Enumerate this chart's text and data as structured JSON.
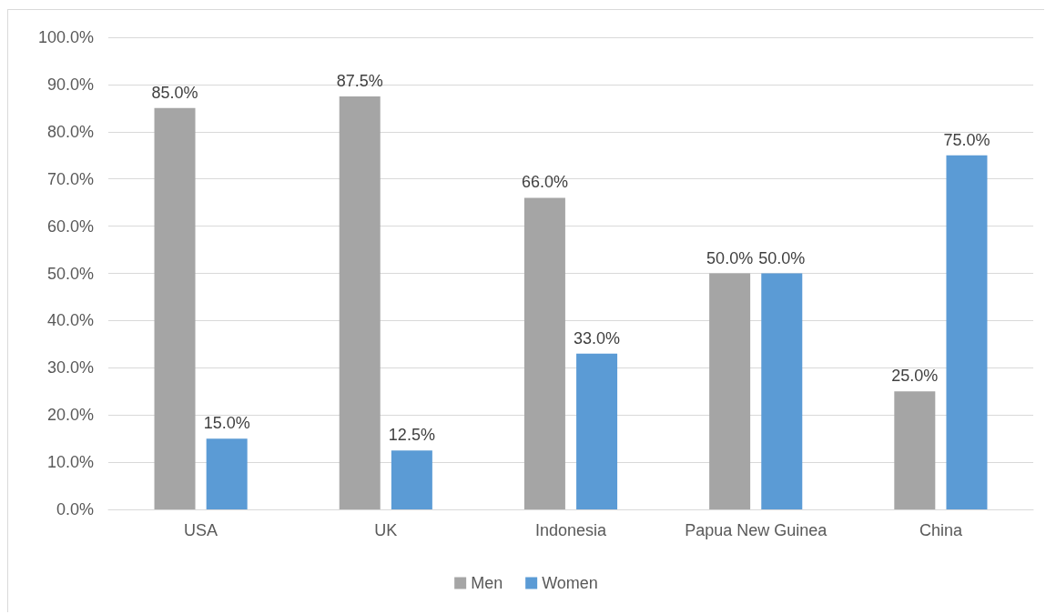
{
  "chart_data": {
    "type": "bar",
    "categories": [
      "USA",
      "UK",
      "Indonesia",
      "Papua New Guinea",
      "China"
    ],
    "series": [
      {
        "name": "Men",
        "color": "#a5a5a5",
        "values": [
          85.0,
          87.5,
          66.0,
          50.0,
          25.0
        ],
        "value_labels": [
          "85.0%",
          "87.5%",
          "66.0%",
          "50.0%",
          "25.0%"
        ]
      },
      {
        "name": "Women",
        "color": "#5b9bd5",
        "values": [
          15.0,
          12.5,
          33.0,
          50.0,
          75.0
        ],
        "value_labels": [
          "15.0%",
          "12.5%",
          "33.0%",
          "50.0%",
          "75.0%"
        ]
      }
    ],
    "ylim": [
      0,
      100
    ],
    "yticks": [
      {
        "value": 0,
        "label": "0.0%"
      },
      {
        "value": 10,
        "label": "10.0%"
      },
      {
        "value": 20,
        "label": "20.0%"
      },
      {
        "value": 30,
        "label": "30.0%"
      },
      {
        "value": 40,
        "label": "40.0%"
      },
      {
        "value": 50,
        "label": "50.0%"
      },
      {
        "value": 60,
        "label": "60.0%"
      },
      {
        "value": 70,
        "label": "70.0%"
      },
      {
        "value": 80,
        "label": "80.0%"
      },
      {
        "value": 90,
        "label": "90.0%"
      },
      {
        "value": 100,
        "label": "100.0%"
      }
    ],
    "grid": "y",
    "legend": "bottom"
  }
}
